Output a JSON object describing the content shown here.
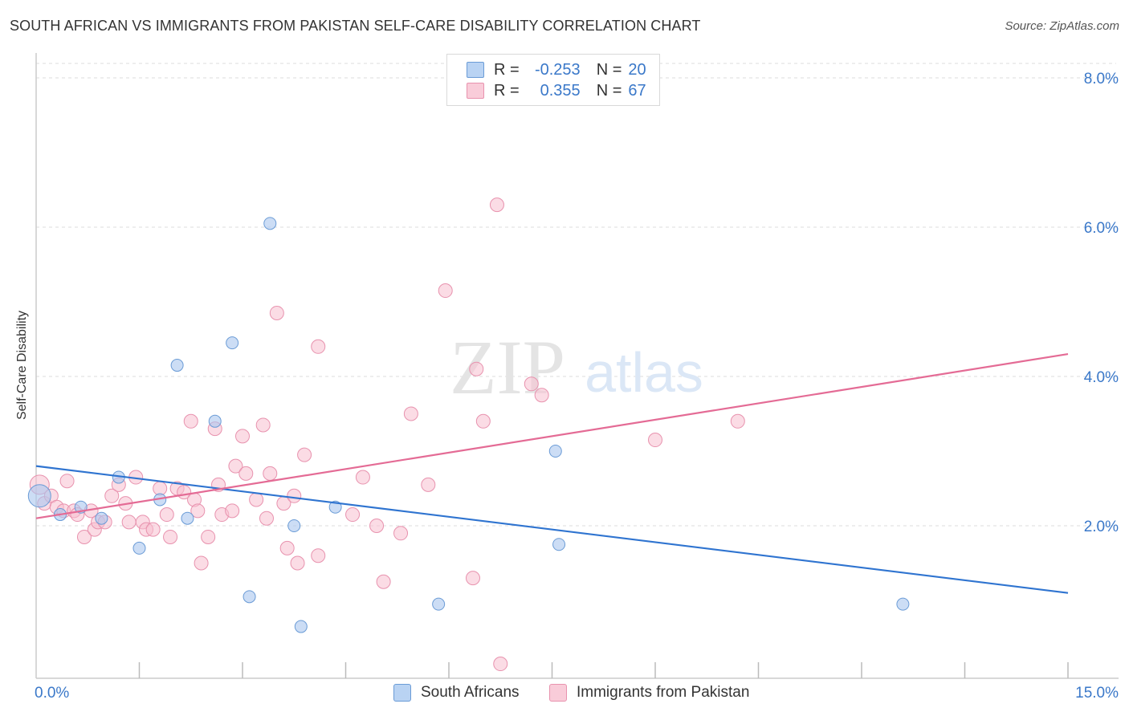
{
  "header": {
    "title": "SOUTH AFRICAN VS IMMIGRANTS FROM PAKISTAN SELF-CARE DISABILITY CORRELATION CHART",
    "source": "Source: ZipAtlas.com"
  },
  "watermark": {
    "zip": "ZIP",
    "atlas": "atlas"
  },
  "legend_stats": [
    {
      "r_label": "R =",
      "r_value": "-0.253",
      "n_label": "N =",
      "n_value": "20",
      "color": "#a9c8f0"
    },
    {
      "r_label": "R =",
      "r_value": "0.355",
      "n_label": "N =",
      "n_value": "67",
      "color": "#f7b8cc"
    }
  ],
  "colors": {
    "blue_fill": "#aac7ee",
    "blue_stroke": "#6a9bd6",
    "blue_line": "#2f74d0",
    "pink_fill": "#f7bfd0",
    "pink_stroke": "#e892ae",
    "pink_line": "#e46b95",
    "axis_text": "#3a78c9",
    "grid": "#dddddd"
  },
  "chart_data": {
    "type": "scatter",
    "title": "SOUTH AFRICAN VS IMMIGRANTS FROM PAKISTAN SELF-CARE DISABILITY CORRELATION CHART",
    "xlabel": "",
    "ylabel": "Self-Care Disability",
    "xlim": [
      0,
      15
    ],
    "ylim": [
      0,
      8.2
    ],
    "x_tick_labels": [
      "0.0%",
      "15.0%"
    ],
    "y_ticks": [
      2,
      4,
      6,
      8
    ],
    "y_tick_labels": [
      "2.0%",
      "4.0%",
      "6.0%",
      "8.0%"
    ],
    "grid": "horizontal dashed",
    "legend_placement": "top-center and bottom",
    "series": [
      {
        "name": "South Africans",
        "color": "#aac7ee",
        "points": [
          [
            0.05,
            2.4
          ],
          [
            0.35,
            2.15
          ],
          [
            0.65,
            2.25
          ],
          [
            0.95,
            2.1
          ],
          [
            1.2,
            2.65
          ],
          [
            1.5,
            1.7
          ],
          [
            1.8,
            2.35
          ],
          [
            2.05,
            4.15
          ],
          [
            2.2,
            2.1
          ],
          [
            2.6,
            3.4
          ],
          [
            2.85,
            4.45
          ],
          [
            3.1,
            1.05
          ],
          [
            3.4,
            6.05
          ],
          [
            3.75,
            2.0
          ],
          [
            3.85,
            0.65
          ],
          [
            4.35,
            2.25
          ],
          [
            5.85,
            0.95
          ],
          [
            7.55,
            3.0
          ],
          [
            7.6,
            1.75
          ],
          [
            12.6,
            0.95
          ]
        ],
        "trend": {
          "x": [
            0,
            15
          ],
          "y": [
            2.8,
            1.1
          ]
        }
      },
      {
        "name": "Immigrants from Pakistan",
        "color": "#f7bfd0",
        "points": [
          [
            0.05,
            2.55
          ],
          [
            0.12,
            2.3
          ],
          [
            0.22,
            2.4
          ],
          [
            0.3,
            2.25
          ],
          [
            0.4,
            2.2
          ],
          [
            0.45,
            2.6
          ],
          [
            0.55,
            2.2
          ],
          [
            0.6,
            2.15
          ],
          [
            0.7,
            1.85
          ],
          [
            0.8,
            2.2
          ],
          [
            0.85,
            1.95
          ],
          [
            0.9,
            2.05
          ],
          [
            1.0,
            2.05
          ],
          [
            1.1,
            2.4
          ],
          [
            1.2,
            2.55
          ],
          [
            1.3,
            2.3
          ],
          [
            1.35,
            2.05
          ],
          [
            1.45,
            2.65
          ],
          [
            1.55,
            2.05
          ],
          [
            1.6,
            1.95
          ],
          [
            1.7,
            1.95
          ],
          [
            1.8,
            2.5
          ],
          [
            1.9,
            2.15
          ],
          [
            1.95,
            1.85
          ],
          [
            2.05,
            2.5
          ],
          [
            2.15,
            2.45
          ],
          [
            2.25,
            3.4
          ],
          [
            2.3,
            2.35
          ],
          [
            2.35,
            2.2
          ],
          [
            2.4,
            1.5
          ],
          [
            2.5,
            1.85
          ],
          [
            2.6,
            3.3
          ],
          [
            2.65,
            2.55
          ],
          [
            2.7,
            2.15
          ],
          [
            2.85,
            2.2
          ],
          [
            2.9,
            2.8
          ],
          [
            3.0,
            3.2
          ],
          [
            3.05,
            2.7
          ],
          [
            3.2,
            2.35
          ],
          [
            3.3,
            3.35
          ],
          [
            3.35,
            2.1
          ],
          [
            3.4,
            2.7
          ],
          [
            3.5,
            4.85
          ],
          [
            3.6,
            2.3
          ],
          [
            3.65,
            1.7
          ],
          [
            3.75,
            2.4
          ],
          [
            3.8,
            1.5
          ],
          [
            3.9,
            2.95
          ],
          [
            4.1,
            1.6
          ],
          [
            4.1,
            4.4
          ],
          [
            4.6,
            2.15
          ],
          [
            4.75,
            2.65
          ],
          [
            4.95,
            2.0
          ],
          [
            5.05,
            1.25
          ],
          [
            5.3,
            1.9
          ],
          [
            5.45,
            3.5
          ],
          [
            5.7,
            2.55
          ],
          [
            5.95,
            5.15
          ],
          [
            6.35,
            1.3
          ],
          [
            6.4,
            4.1
          ],
          [
            6.5,
            3.4
          ],
          [
            6.7,
            6.3
          ],
          [
            6.75,
            0.15
          ],
          [
            7.2,
            3.9
          ],
          [
            7.35,
            3.75
          ],
          [
            9.0,
            3.15
          ],
          [
            10.2,
            3.4
          ]
        ],
        "trend": {
          "x": [
            0,
            15
          ],
          "y": [
            2.1,
            4.3
          ]
        }
      }
    ]
  }
}
